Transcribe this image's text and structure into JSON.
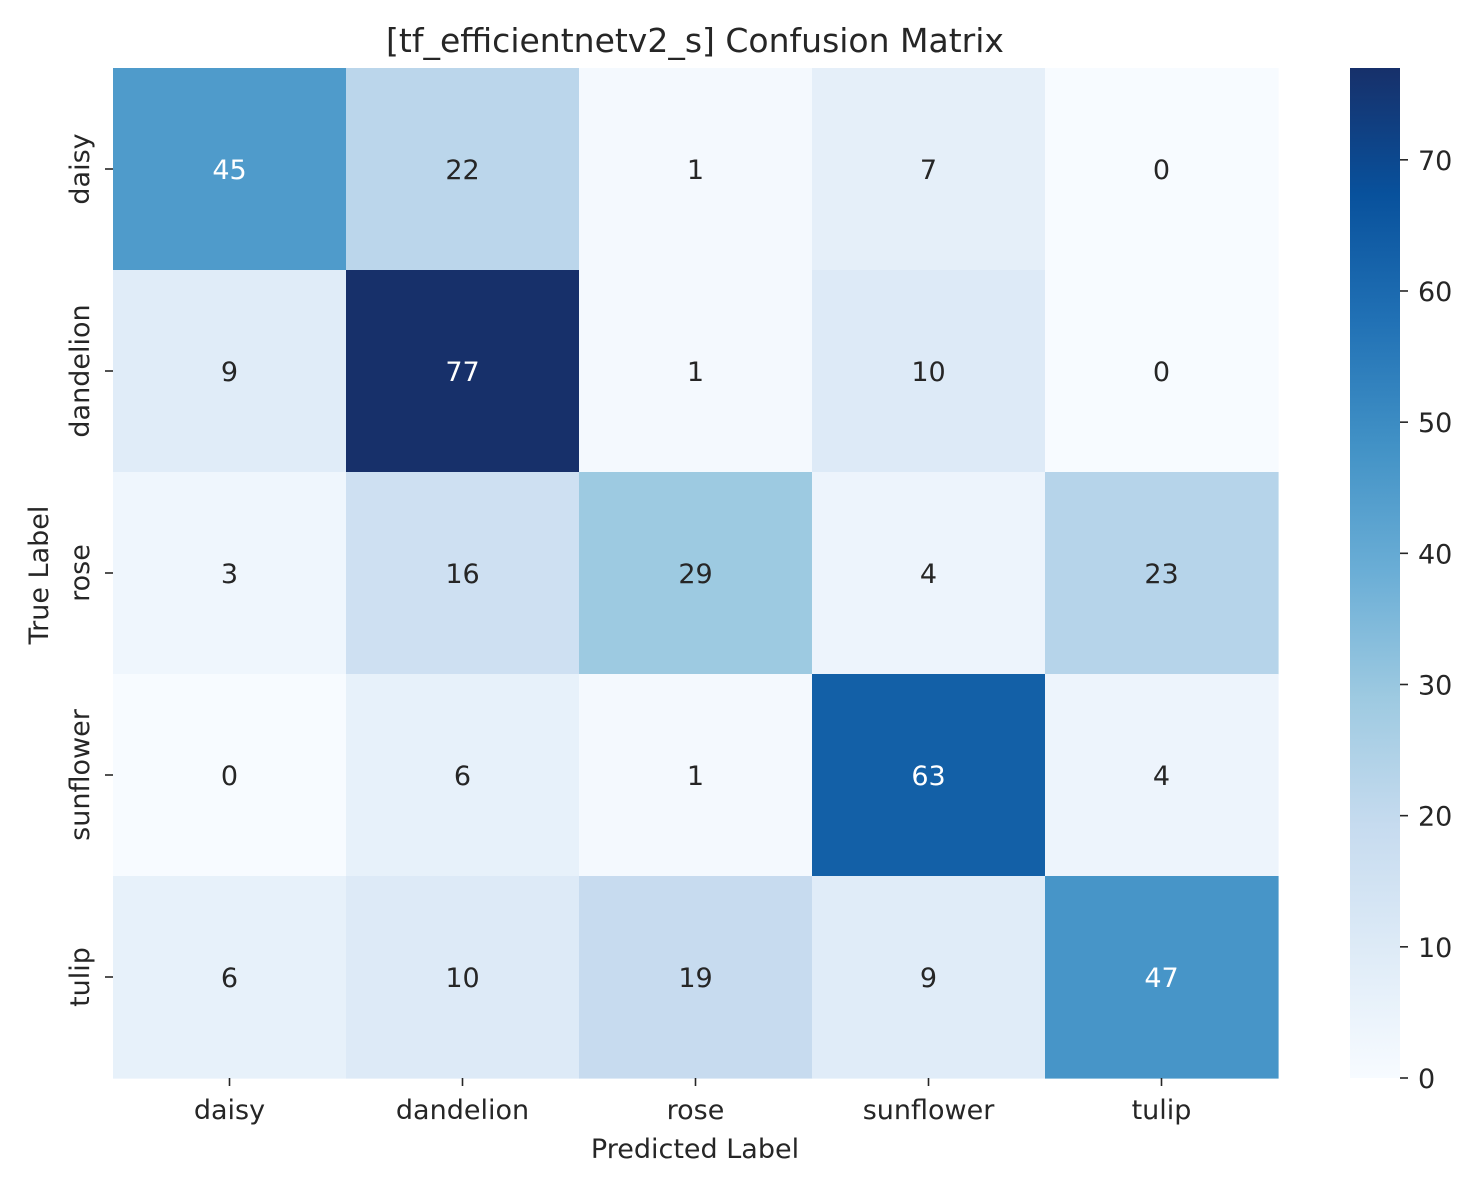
{
  "chart_data": {
    "type": "heatmap",
    "title": "[tf_efficientnetv2_s] Confusion Matrix",
    "xlabel": "Predicted Label",
    "ylabel": "True Label",
    "x_categories": [
      "daisy",
      "dandelion",
      "rose",
      "sunflower",
      "tulip"
    ],
    "y_categories": [
      "daisy",
      "dandelion",
      "rose",
      "sunflower",
      "tulip"
    ],
    "values": [
      [
        45,
        22,
        1,
        7,
        0
      ],
      [
        9,
        77,
        1,
        10,
        0
      ],
      [
        3,
        16,
        29,
        4,
        23
      ],
      [
        0,
        6,
        1,
        63,
        4
      ],
      [
        6,
        10,
        19,
        9,
        47
      ]
    ],
    "color_scale": {
      "name": "Blues",
      "min": 0,
      "max": 77,
      "ticks": [
        0,
        10,
        20,
        30,
        40,
        50,
        60,
        70
      ],
      "stops": [
        "#f7fbff",
        "#deebf7",
        "#c6dbef",
        "#9ecae1",
        "#6baed6",
        "#4292c6",
        "#2171b5",
        "#08519c",
        "#08306b"
      ],
      "endpoint_dark": "#17306a"
    },
    "annotation_colors": {
      "light_text": "#ffffff",
      "dark_text": "#262626"
    }
  }
}
